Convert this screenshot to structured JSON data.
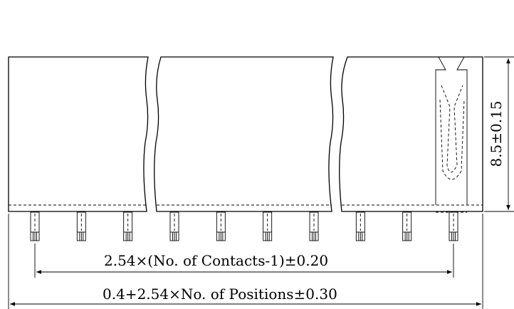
{
  "drawing": {
    "body_height_dim": "8.5±0.15",
    "contact_pitch_dim": "2.54×(No. of Contacts-1)±0.20",
    "overall_length_dim": "0.4+2.54×No. of Positions±0.30",
    "pin_count_shown": 10
  }
}
